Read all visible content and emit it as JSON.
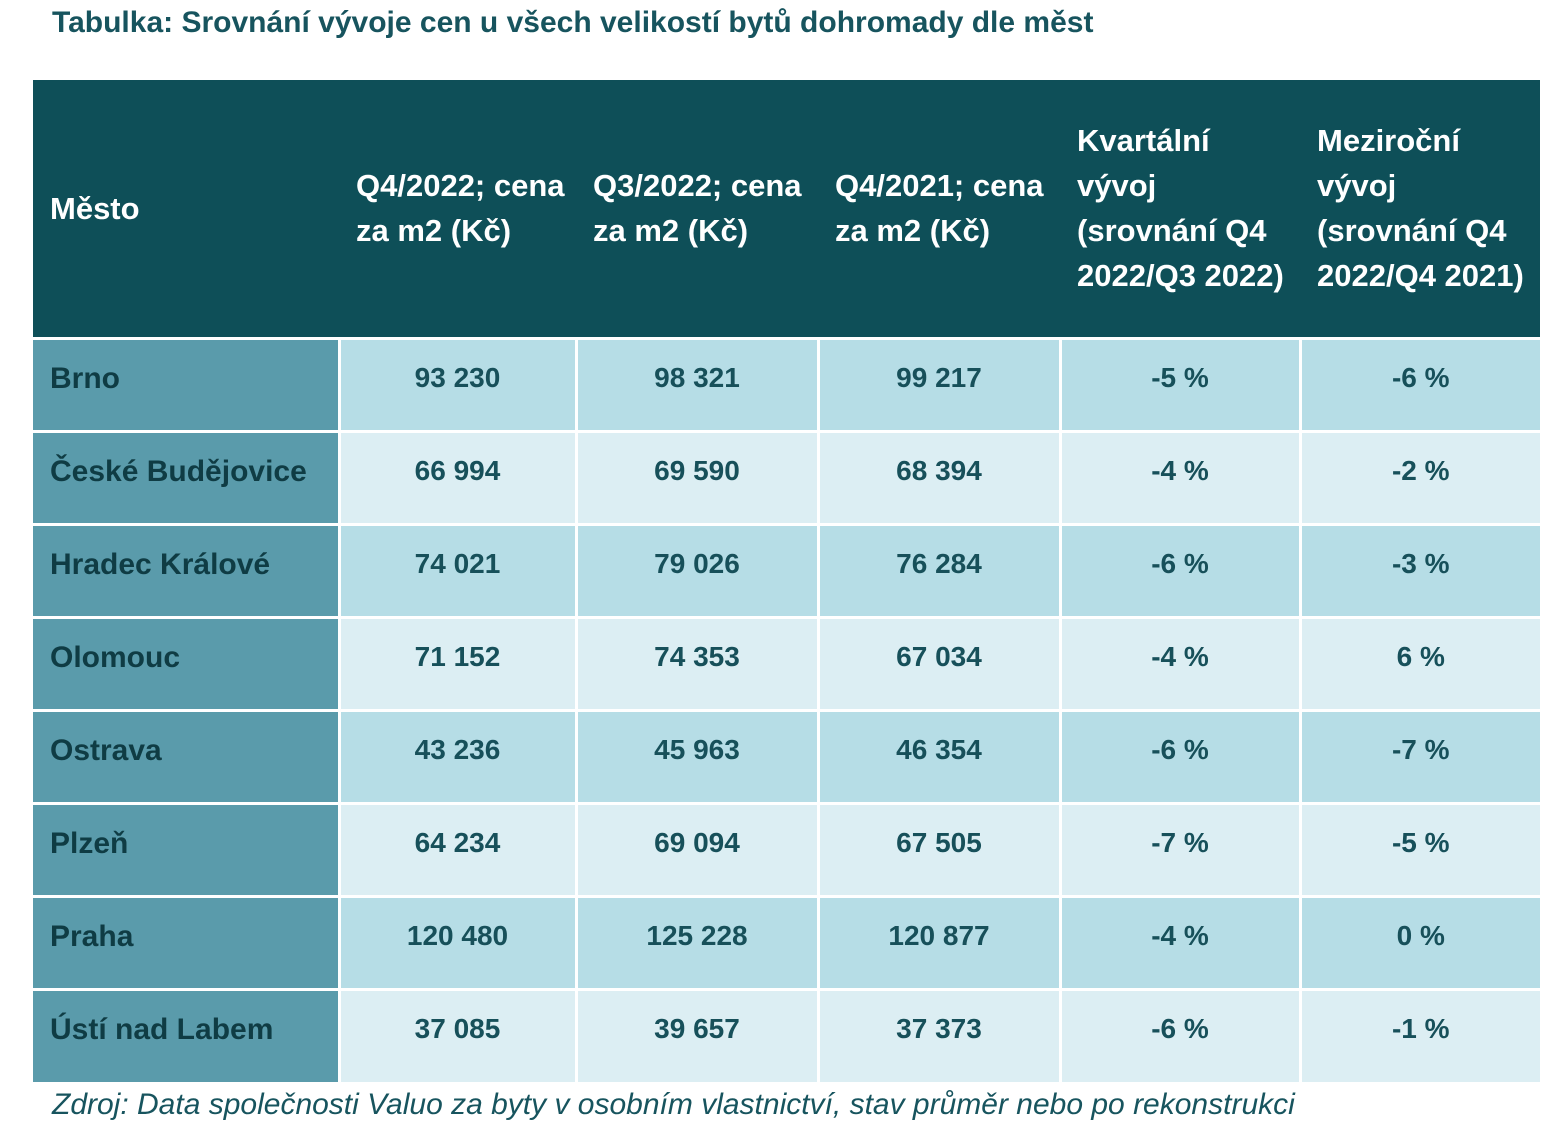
{
  "title": "Tabulka: Srovnání vývoje cen u všech velikostí bytů dohromady dle měst",
  "table": {
    "headers": [
      "Město",
      "Q4/2022; cena za m2 (Kč)",
      "Q3/2022; cena za m2 (Kč)",
      "Q4/2021; cena za m2 (Kč)",
      "Kvartální vývoj (srovnání Q4 2022/Q3 2022)",
      "Meziroční vývoj (srovnání Q4 2022/Q4 2021)"
    ],
    "rows": [
      [
        "Brno",
        "93 230",
        "98 321",
        "99 217",
        "-5 %",
        "-6 %"
      ],
      [
        "České Budějovice",
        "66 994",
        "69 590",
        "68 394",
        "-4 %",
        "-2 %"
      ],
      [
        "Hradec Králové",
        "74 021",
        "79 026",
        "76 284",
        "-6 %",
        "-3 %"
      ],
      [
        "Olomouc",
        "71 152",
        "74 353",
        "67 034",
        "-4 %",
        "6 %"
      ],
      [
        "Ostrava",
        "43 236",
        "45 963",
        "46 354",
        "-6 %",
        "-7 %"
      ],
      [
        "Plzeň",
        "64 234",
        "69 094",
        "67 505",
        "-7 %",
        "-5 %"
      ],
      [
        "Praha",
        "120 480",
        "125 228",
        "120 877",
        "-4 %",
        "0 %"
      ],
      [
        "Ústí nad Labem",
        "37 085",
        "39 657",
        "37 373",
        "-6 %",
        "-1 %"
      ]
    ]
  },
  "source": "Zdroj: Data společnosti Valuo za byty v osobním vlastnictví, stav průměr nebo po rekonstrukci",
  "colors": {
    "header_bg": "#0e4f58",
    "city_bg": "#5a9bab",
    "row_odd_bg": "#b6dde6",
    "row_even_bg": "#dceef3",
    "text": "#17505a"
  }
}
